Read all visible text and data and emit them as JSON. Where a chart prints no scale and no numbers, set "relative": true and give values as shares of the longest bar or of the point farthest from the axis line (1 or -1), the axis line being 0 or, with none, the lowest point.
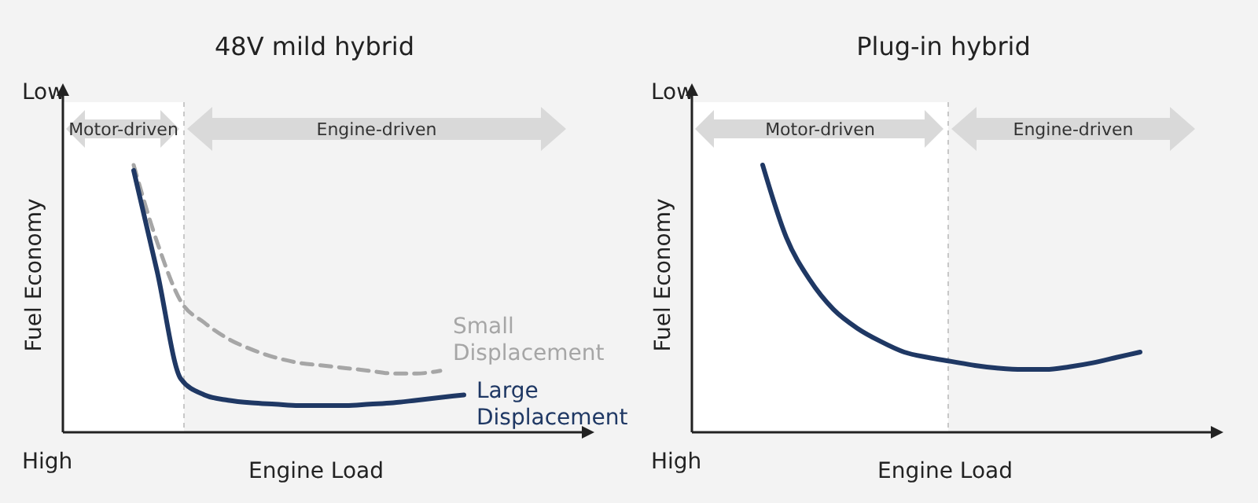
{
  "chart_data": [
    {
      "type": "line",
      "title": "48V mild hybrid",
      "xlabel": "Engine Load",
      "ylabel": "Fuel Economy",
      "relative": true,
      "annotations": [
        "Low",
        "High",
        "Motor-driven",
        "Engine-driven"
      ],
      "categories": [
        null,
        null,
        null,
        null,
        null,
        null,
        null,
        null,
        null,
        null,
        null,
        null,
        null,
        null,
        null,
        null,
        null,
        null,
        null,
        null,
        null
      ],
      "series": [
        {
          "name": "Small Displacement",
          "color": "#a6a6a6",
          "line_style": "dashed",
          "values": [
            null,
            null,
            null,
            1.0,
            0.71,
            0.49,
            0.41,
            0.35,
            0.31,
            0.28,
            0.26,
            0.25,
            0.24,
            0.23,
            0.22,
            0.22,
            0.23,
            null,
            null,
            null,
            null
          ]
        },
        {
          "name": "Large Displacement",
          "color": "#1f3864",
          "line_style": "solid",
          "values": [
            null,
            null,
            null,
            0.98,
            0.6,
            0.2,
            0.14,
            0.12,
            0.11,
            0.105,
            0.1,
            0.1,
            0.1,
            0.105,
            0.11,
            0.12,
            0.13,
            0.14,
            null,
            null,
            null
          ]
        }
      ]
    },
    {
      "type": "line",
      "title": "Plug-in hybrid",
      "xlabel": "Engine Load",
      "ylabel": "Fuel Economy",
      "relative": true,
      "annotations": [
        "Low",
        "High",
        "Motor-driven",
        "Engine-driven"
      ],
      "categories": [
        null,
        null,
        null,
        null,
        null,
        null,
        null,
        null,
        null,
        null,
        null,
        null,
        null,
        null,
        null,
        null,
        null,
        null,
        null,
        null,
        null,
        null,
        null
      ],
      "series": [
        {
          "color": "#1f3864",
          "line_style": "solid",
          "values": [
            null,
            null,
            null,
            1.0,
            0.73,
            0.57,
            0.46,
            0.39,
            0.34,
            0.3,
            0.28,
            0.265,
            0.25,
            0.24,
            0.235,
            0.235,
            0.245,
            0.26,
            0.28,
            0.3,
            null,
            null,
            null
          ]
        }
      ]
    }
  ]
}
